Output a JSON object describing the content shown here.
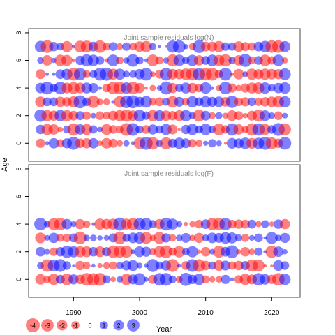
{
  "colors": {
    "positive": "#0000ff",
    "negative": "#ff0000",
    "frame": "#444444",
    "title": "#888888",
    "axis": "#000000"
  },
  "axis_labels": {
    "x": "Year",
    "y": "Age"
  },
  "legend_values": [
    "-4",
    "-3",
    "-2",
    "-1",
    "0",
    "1",
    "2",
    "3"
  ],
  "chart_data": [
    {
      "type": "scatter",
      "subtype": "bubble",
      "title": "Joint sample residuals log(N)",
      "xlabel": "Year",
      "ylabel": "Age",
      "xlim": [
        1983.2,
        2024.3
      ],
      "ylim": [
        -1.3,
        8.3
      ],
      "xticks": [
        1990,
        2000,
        2010,
        2020
      ],
      "yticks": [
        0,
        2,
        4,
        6,
        8
      ],
      "years_range": [
        1985,
        2022
      ],
      "ages": [
        0,
        1,
        2,
        3,
        4,
        5,
        6,
        7
      ],
      "residual_sign_encoding": {
        "positive": "blue",
        "negative": "red"
      },
      "size_encoding": "bubble area proportional to |residual|",
      "points": [
        {
          "year": 1985,
          "age": 7,
          "r": 2.5
        },
        {
          "year": 1994,
          "age": 7,
          "r": -3.0
        },
        {
          "year": 2021,
          "age": 7,
          "r": -3.0
        },
        {
          "year": 2006,
          "age": 6,
          "r": 2.5
        },
        {
          "year": 2019,
          "age": 6,
          "r": -2.5
        },
        {
          "year": 2021,
          "age": 6,
          "r": 2.5
        },
        {
          "year": 2020,
          "age": 5,
          "r": -2.0
        },
        {
          "year": 1985,
          "age": 4,
          "r": 2.0
        },
        {
          "year": 2010,
          "age": 4,
          "r": 2.5
        },
        {
          "year": 2022,
          "age": 4,
          "r": 2.5
        },
        {
          "year": 2008,
          "age": 3,
          "r": 2.5
        },
        {
          "year": 2022,
          "age": 3,
          "r": 2.5
        },
        {
          "year": 2007,
          "age": 2,
          "r": 2.5
        },
        {
          "year": 1999,
          "age": 2,
          "r": -2.0
        },
        {
          "year": 1991,
          "age": 1,
          "r": 2.0
        },
        {
          "year": 1987,
          "age": 1,
          "r": -2.0
        },
        {
          "year": 2016,
          "age": 0,
          "r": 2.5
        },
        {
          "year": 2006,
          "age": 0,
          "r": 2.5
        },
        {
          "year": 1995,
          "age": 0,
          "r": -2.0
        }
      ]
    },
    {
      "type": "scatter",
      "subtype": "bubble",
      "title": "Joint sample residuals log(F)",
      "xlabel": "Year",
      "ylabel": "Age",
      "xlim": [
        1983.2,
        2024.3
      ],
      "ylim": [
        -1.3,
        8.3
      ],
      "xticks": [
        1990,
        2000,
        2010,
        2020
      ],
      "yticks": [
        0,
        2,
        4,
        6,
        8
      ],
      "years_range": [
        1985,
        2022
      ],
      "ages": [
        0,
        1,
        2,
        3,
        4
      ],
      "residual_sign_encoding": {
        "positive": "blue",
        "negative": "red"
      },
      "size_encoding": "bubble area proportional to |residual|",
      "points": [
        {
          "year": 1986,
          "age": 1,
          "r": -3.0
        },
        {
          "year": 2000,
          "age": 0,
          "r": 3.0
        },
        {
          "year": 1998,
          "age": 0,
          "r": -2.5
        },
        {
          "year": 1995,
          "age": 4,
          "r": -2.0
        },
        {
          "year": 1989,
          "age": 4,
          "r": 2.0
        },
        {
          "year": 2022,
          "age": 0,
          "r": 2.5
        },
        {
          "year": 2019,
          "age": 0,
          "r": 2.0
        },
        {
          "year": 1985,
          "age": 0,
          "r": -2.0
        }
      ]
    }
  ]
}
